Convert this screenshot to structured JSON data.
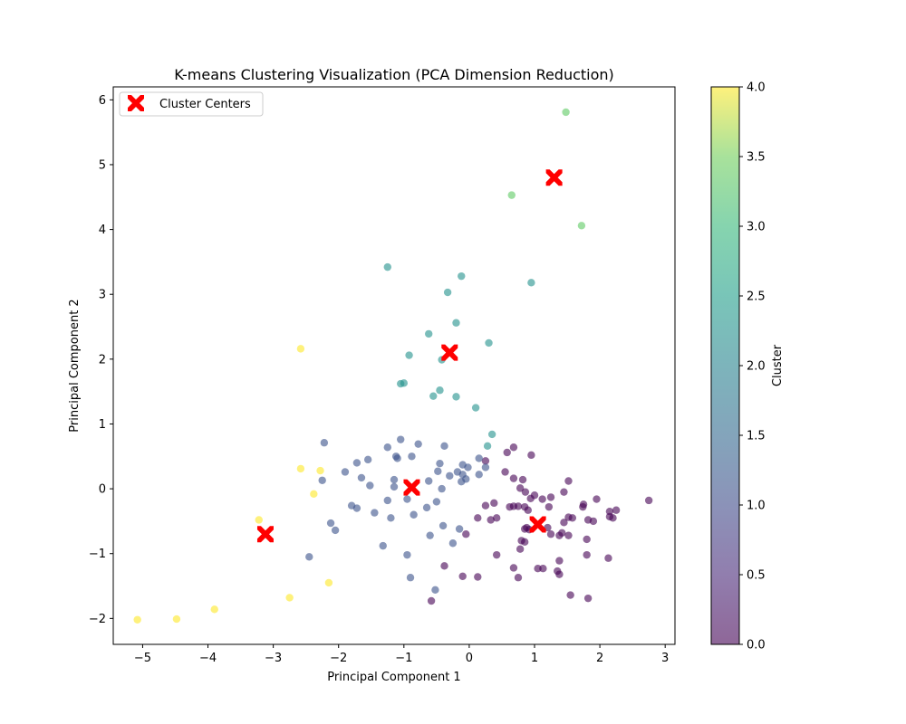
{
  "chart_data": {
    "type": "scatter",
    "title": "K-means Clustering Visualization (PCA Dimension Reduction)",
    "xlabel": "Principal Component 1",
    "ylabel": "Principal Component 2",
    "xlim": [
      -5.45,
      3.15
    ],
    "ylim": [
      -2.4,
      6.2
    ],
    "xticks": [
      -5,
      -4,
      -3,
      -2,
      -1,
      0,
      1,
      2,
      3
    ],
    "yticks": [
      -2,
      -1,
      0,
      1,
      2,
      3,
      4,
      5,
      6
    ],
    "legend": {
      "label": "Cluster Centers",
      "placement": "top-left"
    },
    "colorbar": {
      "label": "Cluster",
      "range": [
        0.0,
        4.0
      ],
      "ticks": [
        "0.0",
        "0.5",
        "1.0",
        "1.5",
        "2.0",
        "2.5",
        "3.0",
        "3.5",
        "4.0"
      ],
      "colormap": "viridis"
    },
    "cluster_colors": [
      "#440154",
      "#3b528b",
      "#21918c",
      "#5ec962",
      "#fde725"
    ],
    "centers": [
      {
        "cluster": 0,
        "x": 1.05,
        "y": -0.55
      },
      {
        "cluster": 1,
        "x": -0.88,
        "y": 0.02
      },
      {
        "cluster": 2,
        "x": -0.3,
        "y": 2.1
      },
      {
        "cluster": 3,
        "x": 1.3,
        "y": 4.8
      },
      {
        "cluster": 4,
        "x": -3.12,
        "y": -0.7
      }
    ],
    "series": [
      {
        "cluster": 0,
        "points": [
          [
            0.58,
            0.56
          ],
          [
            0.68,
            0.64
          ],
          [
            0.95,
            0.52
          ],
          [
            0.25,
            0.43
          ],
          [
            0.68,
            0.16
          ],
          [
            0.82,
            0.14
          ],
          [
            0.55,
            0.26
          ],
          [
            0.86,
            -0.05
          ],
          [
            0.78,
            0.01
          ],
          [
            0.94,
            -0.15
          ],
          [
            1.0,
            -0.1
          ],
          [
            1.12,
            -0.16
          ],
          [
            1.25,
            -0.13
          ],
          [
            1.22,
            -0.28
          ],
          [
            0.75,
            -0.27
          ],
          [
            0.68,
            -0.27
          ],
          [
            0.62,
            -0.28
          ],
          [
            0.85,
            -0.28
          ],
          [
            0.9,
            -0.33
          ],
          [
            0.25,
            -0.26
          ],
          [
            0.38,
            -0.22
          ],
          [
            0.33,
            -0.48
          ],
          [
            0.42,
            -0.45
          ],
          [
            0.13,
            -0.45
          ],
          [
            1.45,
            -0.05
          ],
          [
            1.52,
            0.12
          ],
          [
            1.75,
            -0.24
          ],
          [
            1.74,
            -0.28
          ],
          [
            1.95,
            -0.16
          ],
          [
            1.52,
            -0.44
          ],
          [
            1.58,
            -0.45
          ],
          [
            1.45,
            -0.52
          ],
          [
            1.82,
            -0.48
          ],
          [
            1.9,
            -0.5
          ],
          [
            2.15,
            -0.35
          ],
          [
            2.25,
            -0.33
          ],
          [
            2.15,
            -0.43
          ],
          [
            2.2,
            -0.45
          ],
          [
            2.75,
            -0.18
          ],
          [
            0.85,
            -0.62
          ],
          [
            0.88,
            -0.6
          ],
          [
            0.92,
            -0.63
          ],
          [
            1.2,
            -0.6
          ],
          [
            1.25,
            -0.7
          ],
          [
            1.38,
            -0.72
          ],
          [
            1.42,
            -0.68
          ],
          [
            1.52,
            -0.72
          ],
          [
            0.8,
            -0.8
          ],
          [
            0.85,
            -0.82
          ],
          [
            0.78,
            -0.93
          ],
          [
            1.8,
            -0.78
          ],
          [
            1.8,
            -1.02
          ],
          [
            2.13,
            -1.07
          ],
          [
            -0.05,
            -0.7
          ],
          [
            0.42,
            -1.02
          ],
          [
            1.38,
            -1.11
          ],
          [
            1.35,
            -1.27
          ],
          [
            1.38,
            -1.32
          ],
          [
            1.05,
            -1.23
          ],
          [
            1.13,
            -1.23
          ],
          [
            0.68,
            -1.22
          ],
          [
            0.75,
            -1.37
          ],
          [
            -0.38,
            -1.19
          ],
          [
            -0.1,
            -1.35
          ],
          [
            0.13,
            -1.36
          ],
          [
            1.55,
            -1.64
          ],
          [
            1.82,
            -1.69
          ],
          [
            -0.58,
            -1.73
          ]
        ]
      },
      {
        "cluster": 1,
        "points": [
          [
            -2.22,
            0.71
          ],
          [
            -1.72,
            0.4
          ],
          [
            -1.55,
            0.45
          ],
          [
            -1.25,
            0.64
          ],
          [
            -1.05,
            0.76
          ],
          [
            -0.78,
            0.69
          ],
          [
            -0.38,
            0.66
          ],
          [
            -1.12,
            0.5
          ],
          [
            -1.1,
            0.47
          ],
          [
            -0.88,
            0.5
          ],
          [
            -0.45,
            0.39
          ],
          [
            -0.1,
            0.37
          ],
          [
            -0.02,
            0.33
          ],
          [
            0.15,
            0.47
          ],
          [
            0.25,
            0.33
          ],
          [
            -1.9,
            0.26
          ],
          [
            -1.65,
            0.17
          ],
          [
            -1.15,
            0.14
          ],
          [
            -0.62,
            0.12
          ],
          [
            -0.48,
            0.27
          ],
          [
            -0.3,
            0.2
          ],
          [
            -0.18,
            0.26
          ],
          [
            -0.1,
            0.22
          ],
          [
            -0.05,
            0.15
          ],
          [
            -0.12,
            0.11
          ],
          [
            0.15,
            0.22
          ],
          [
            -2.25,
            0.13
          ],
          [
            -1.52,
            0.05
          ],
          [
            -1.15,
            0.03
          ],
          [
            -0.95,
            -0.16
          ],
          [
            -0.42,
            0.0
          ],
          [
            -1.25,
            -0.18
          ],
          [
            -0.5,
            -0.2
          ],
          [
            -1.8,
            -0.26
          ],
          [
            -1.72,
            -0.3
          ],
          [
            -1.45,
            -0.37
          ],
          [
            -0.65,
            -0.29
          ],
          [
            -1.2,
            -0.45
          ],
          [
            -0.85,
            -0.4
          ],
          [
            -2.12,
            -0.53
          ],
          [
            -2.05,
            -0.64
          ],
          [
            -0.4,
            -0.57
          ],
          [
            -0.15,
            -0.62
          ],
          [
            -0.6,
            -0.72
          ],
          [
            -1.32,
            -0.88
          ],
          [
            -0.25,
            -0.84
          ],
          [
            -2.45,
            -1.05
          ],
          [
            -0.95,
            -1.02
          ],
          [
            -0.9,
            -1.37
          ],
          [
            -0.52,
            -1.56
          ]
        ]
      },
      {
        "cluster": 2,
        "points": [
          [
            -1.25,
            3.42
          ],
          [
            -0.12,
            3.28
          ],
          [
            -0.33,
            3.03
          ],
          [
            0.95,
            3.18
          ],
          [
            -0.2,
            2.56
          ],
          [
            -0.62,
            2.39
          ],
          [
            0.3,
            2.25
          ],
          [
            -0.92,
            2.06
          ],
          [
            -0.42,
            1.99
          ],
          [
            -1.05,
            1.62
          ],
          [
            -1.0,
            1.63
          ],
          [
            -0.45,
            1.52
          ],
          [
            -0.55,
            1.43
          ],
          [
            -0.2,
            1.42
          ],
          [
            0.1,
            1.25
          ],
          [
            0.35,
            0.84
          ],
          [
            0.28,
            0.66
          ]
        ]
      },
      {
        "cluster": 3,
        "points": [
          [
            1.48,
            5.81
          ],
          [
            0.65,
            4.53
          ],
          [
            1.72,
            4.06
          ]
        ]
      },
      {
        "cluster": 4,
        "points": [
          [
            -2.58,
            2.16
          ],
          [
            -2.58,
            0.31
          ],
          [
            -2.28,
            0.28
          ],
          [
            -2.38,
            -0.08
          ],
          [
            -3.22,
            -0.48
          ],
          [
            -2.15,
            -1.45
          ],
          [
            -2.75,
            -1.68
          ],
          [
            -3.9,
            -1.86
          ],
          [
            -4.48,
            -2.01
          ],
          [
            -5.08,
            -2.02
          ]
        ]
      }
    ]
  }
}
